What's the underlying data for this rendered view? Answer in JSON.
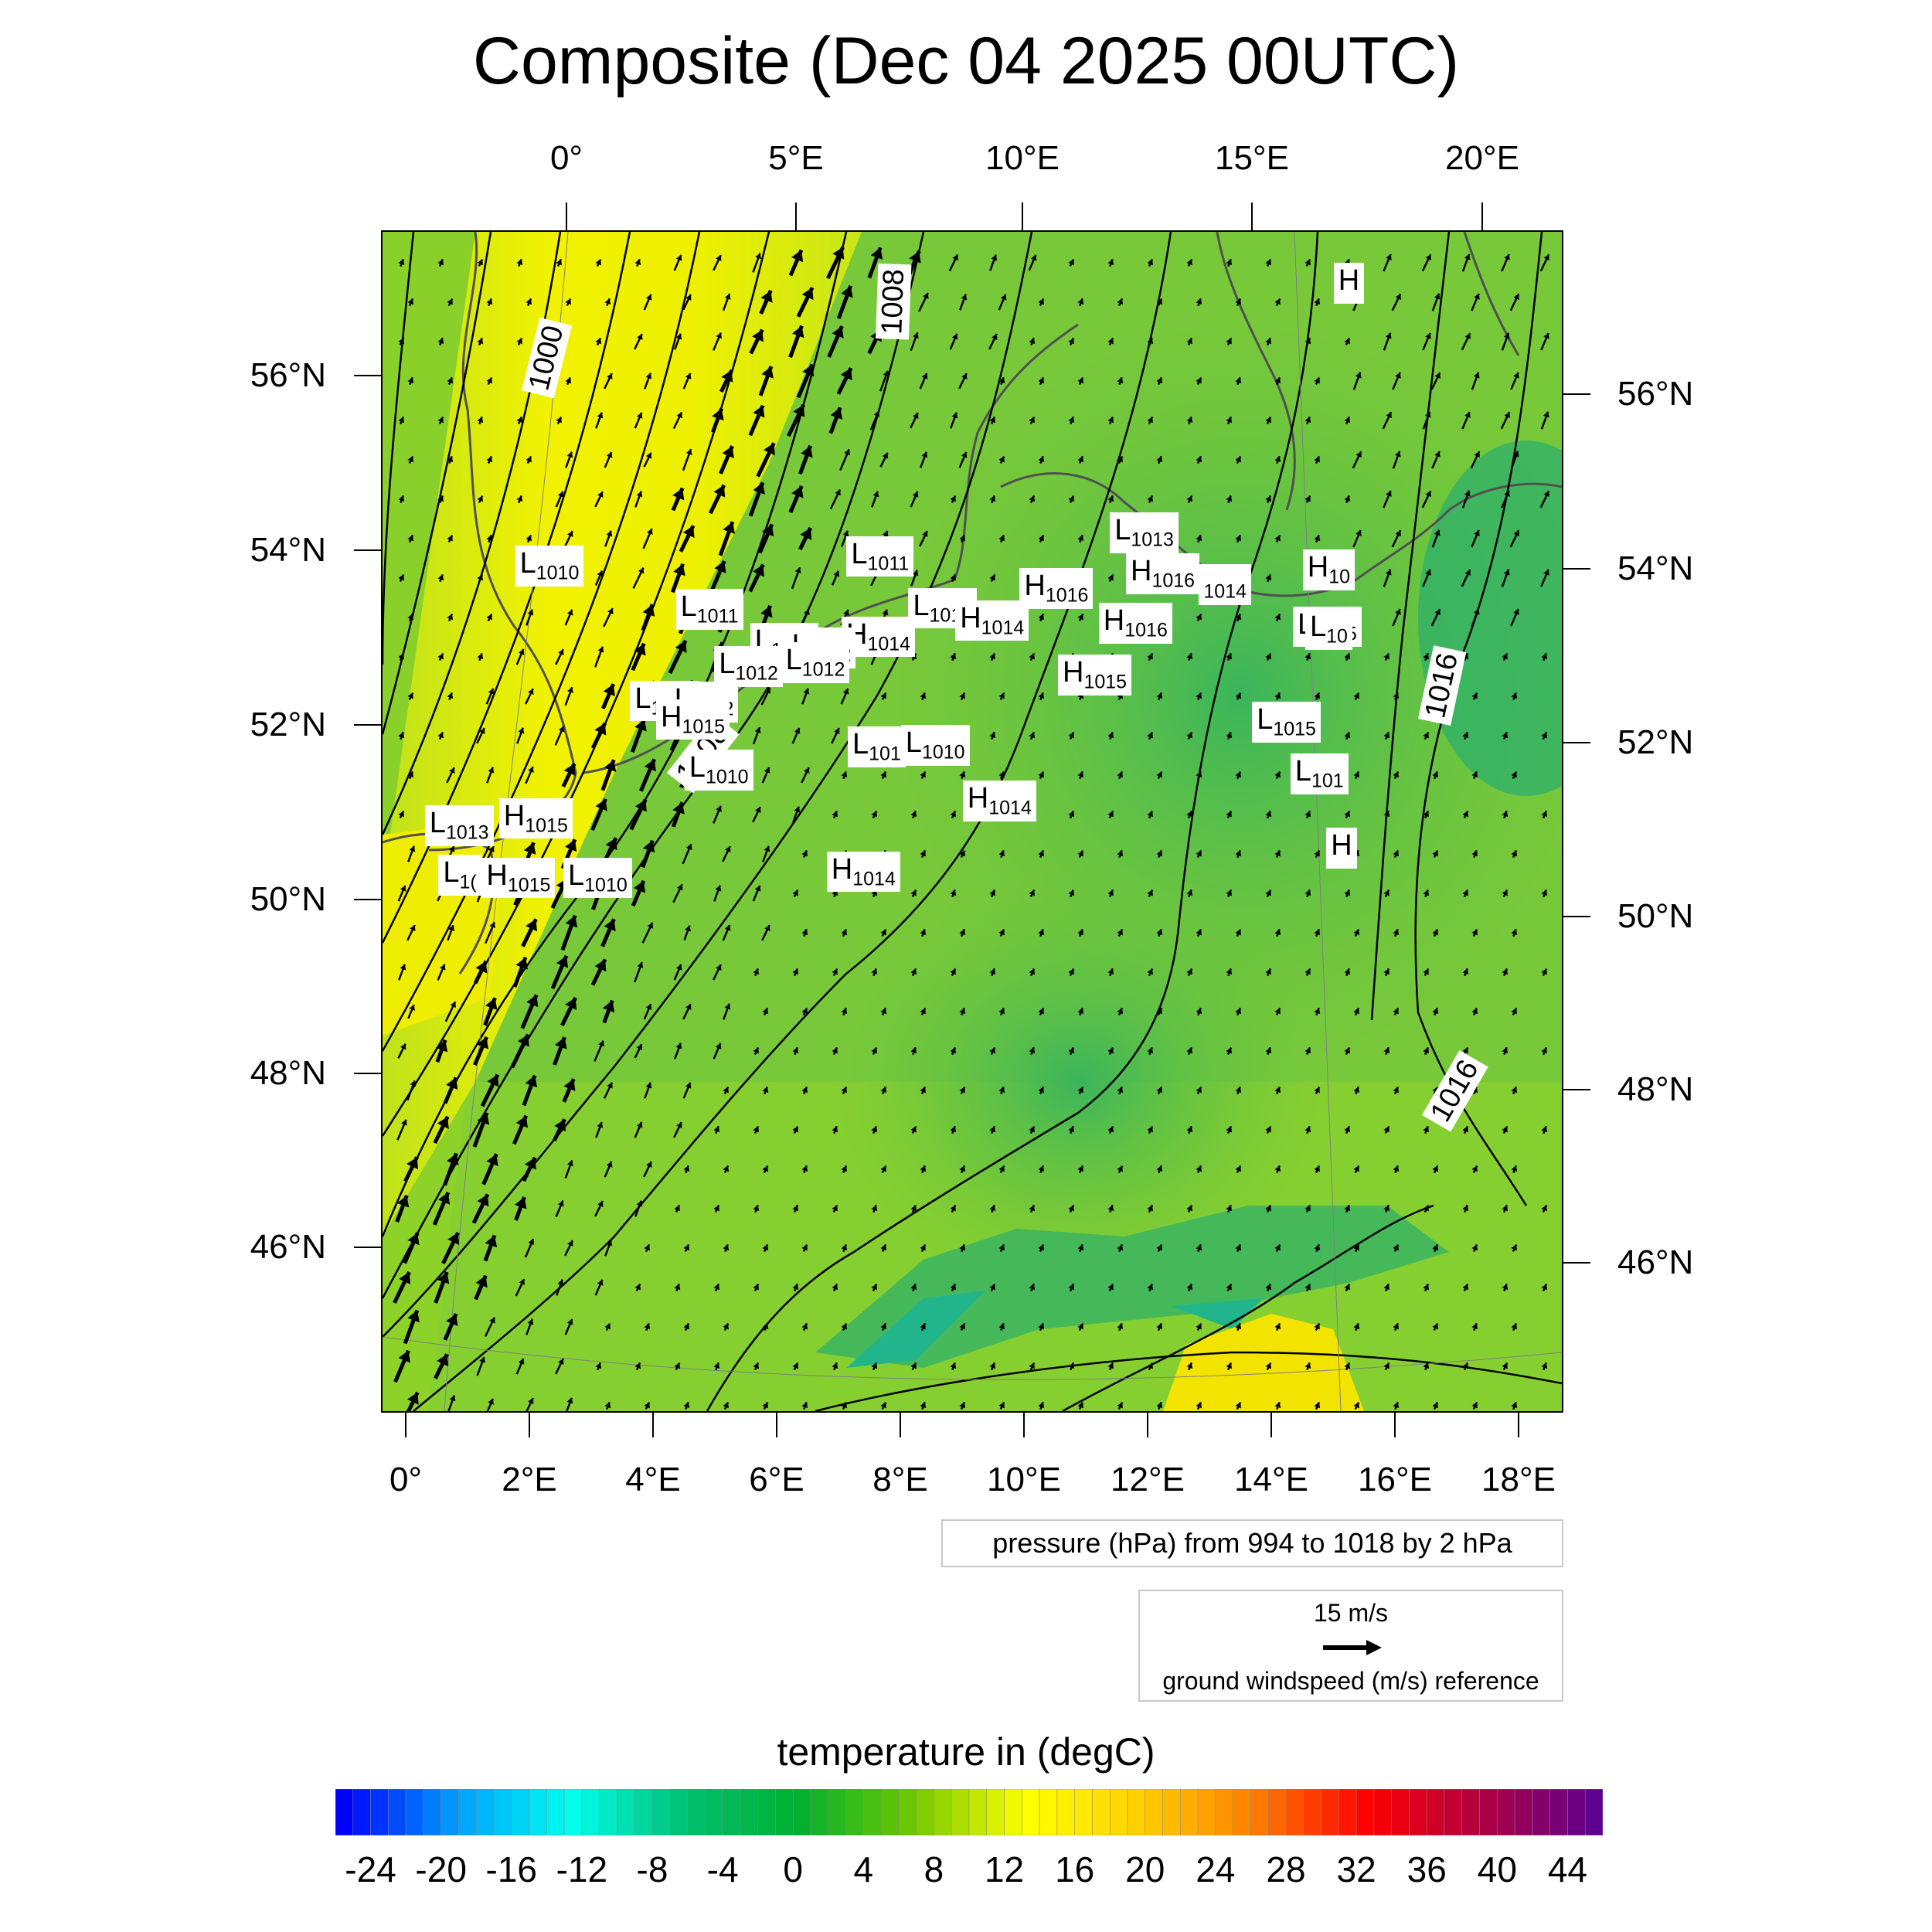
{
  "title": "Composite (Dec 04 2025 00UTC)",
  "top_lon_labels": [
    "0°",
    "5°E",
    "10°E",
    "15°E",
    "20°E"
  ],
  "bottom_lon_labels": [
    "0°",
    "2°E",
    "4°E",
    "6°E",
    "8°E",
    "10°E",
    "12°E",
    "14°E",
    "16°E",
    "18°E"
  ],
  "left_lat_labels": [
    "56°N",
    "54°N",
    "52°N",
    "50°N",
    "48°N",
    "46°N"
  ],
  "right_lat_labels": [
    "56°N",
    "54°N",
    "52°N",
    "50°N",
    "48°N",
    "46°N"
  ],
  "isobar_labels": [
    "1000",
    "1008",
    "1008",
    "1016",
    "1016"
  ],
  "pressure_centers": [
    {
      "type": "L",
      "value": "1011"
    },
    {
      "type": "L",
      "value": "1011"
    },
    {
      "type": "L",
      "value": "1010"
    },
    {
      "type": "H",
      "value": "1016"
    },
    {
      "type": "L",
      "value": "1013"
    },
    {
      "type": "L",
      "value": "1012"
    },
    {
      "type": "H",
      "value": "1016"
    },
    {
      "type": "H",
      "value": "1016"
    },
    {
      "type": "",
      "value": "1014"
    },
    {
      "type": "H",
      "value": "1014"
    },
    {
      "type": "L",
      "value": "1015"
    },
    {
      "type": "L",
      "value": "1012"
    },
    {
      "type": "L",
      "value": "1012"
    },
    {
      "type": "H",
      "value": "1014"
    },
    {
      "type": "L",
      "value": "1012"
    },
    {
      "type": "L",
      "value": "1012"
    },
    {
      "type": "H",
      "value": "1015"
    },
    {
      "type": "L",
      "value": "1012"
    },
    {
      "type": "L",
      "value": "1012"
    },
    {
      "type": "H",
      "value": "1015"
    },
    {
      "type": "L",
      "value": "1015"
    },
    {
      "type": "L",
      "value": "101"
    },
    {
      "type": "L",
      "value": "1010"
    },
    {
      "type": "L",
      "value": "1010"
    },
    {
      "type": "H",
      "value": "1014"
    },
    {
      "type": "L",
      "value": "101"
    },
    {
      "type": "L",
      "value": "1013"
    },
    {
      "type": "H",
      "value": "1015"
    },
    {
      "type": "L",
      "value": "1("
    },
    {
      "type": "H",
      "value": "1015"
    },
    {
      "type": "L",
      "value": "1010"
    },
    {
      "type": "H",
      "value": "1014"
    },
    {
      "type": "H",
      "value": "10"
    },
    {
      "type": "L",
      "value": "10"
    },
    {
      "type": "H",
      "value": ""
    },
    {
      "type": "H",
      "value": ""
    },
    {
      "type": "H",
      "value": "1015"
    }
  ],
  "pressure_note": "pressure (hPa) from 994 to 1018 by 2 hPa",
  "wind_reference": {
    "speed_label": "15 m/s",
    "description": "ground windspeed (m/s) reference",
    "speed": 15
  },
  "temperature": {
    "title": "temperature in (degC)",
    "tick_labels": [
      "-24",
      "-20",
      "-16",
      "-12",
      "-8",
      "-4",
      "0",
      "4",
      "8",
      "12",
      "16",
      "20",
      "24",
      "28",
      "32",
      "36",
      "40",
      "44"
    ],
    "range": [
      -26,
      46
    ],
    "stops": [
      "#0000ff",
      "#00a0ff",
      "#00ffee",
      "#00c070",
      "#00b030",
      "#70c800",
      "#ffff00",
      "#ffd000",
      "#ff8000",
      "#ff0000",
      "#b00040",
      "#600090"
    ]
  },
  "colors": {
    "warm_band": "#f2f200",
    "land_base": "#74c93a",
    "cool_area": "#2fb46a",
    "arrow": "#000000",
    "coast": "#505050"
  }
}
